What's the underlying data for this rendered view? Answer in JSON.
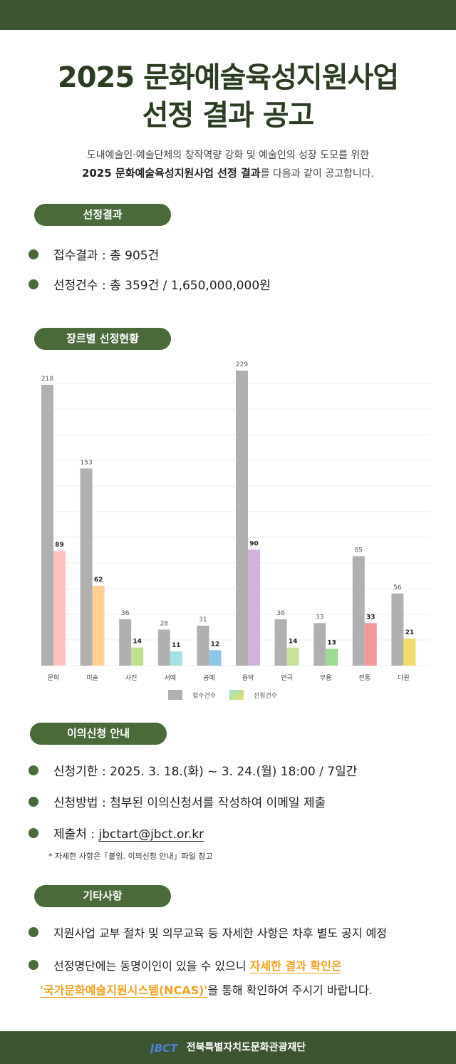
{
  "title": {
    "line1": "2025 문화예술육성지원사업",
    "line2": "선정 결과 공고"
  },
  "intro": {
    "line1": "도내예술인·예술단체의 창작역량 강화 및 예술인의 성장 도모를 위한",
    "line2_bold": "2025 문화예술육성지원사업 선정 결과",
    "line2_rest": "를 다음과 같이 공고합니다."
  },
  "sections": {
    "result": {
      "header": "선정결과",
      "items": [
        "접수결과 : 총 905건",
        "선정건수 : 총 359건 / 1,650,000,000원"
      ]
    },
    "genre": {
      "header": "장르별 선정현황"
    },
    "appeal": {
      "header": "이의신청 안내",
      "items": [
        "신청기한 : 2025. 3. 18.(화) ~ 3. 24.(월) 18:00 / 7일간",
        "신청방법 : 첨부된 이의신청서를 작성하여 이메일 제출"
      ],
      "email_label": "제출처 : ",
      "email": "jbctart@jbct.or.kr",
      "note": "* 자세한 사항은「붙임. 이의신청 안내」파일 참고"
    },
    "etc": {
      "header": "기타사항",
      "items": [
        "지원사업  교부 절차 및 의무교육 등 자세한 사항은 차후 별도 공지 예정"
      ],
      "item2_part1": "선정명단에는 동명이인이 있을 수 있으니 ",
      "item2_highlight1": "자세한 결과 확인은",
      "item2_highlight2": "'국가문화예술지원시스템(NCAS)'",
      "item2_part2": "을 통해 확인하여 주시기 바랍니다."
    }
  },
  "footer": {
    "org": "전북특별자치도문화관광재단",
    "logo_text": "JBCT"
  },
  "colors": {
    "brand": "#3c5530",
    "pill": "#4a6a3a",
    "accent": "#f4a11d",
    "received_bar": "#b0b0b0",
    "selected_bars": [
      "#ffc2c2",
      "#ffcf94",
      "#bde08f",
      "#a3e0e3",
      "#8ec6e6",
      "#d0b2da",
      "#c8e29a",
      "#9edb91",
      "#f29a9a",
      "#f2dc6e"
    ]
  },
  "chart_data": {
    "type": "bar",
    "categories": [
      "문학",
      "미술",
      "사진",
      "서예",
      "공예",
      "음악",
      "연극",
      "무용",
      "전통",
      "다원"
    ],
    "series": [
      {
        "name": "접수건수",
        "values": [
          218,
          153,
          36,
          28,
          31,
          229,
          36,
          33,
          85,
          56
        ]
      },
      {
        "name": "선정건수",
        "values": [
          89,
          62,
          14,
          11,
          12,
          90,
          14,
          13,
          33,
          21
        ]
      }
    ],
    "ylim": [
      0,
      229
    ],
    "grid": true,
    "legend": "bottom-center",
    "value_labels": true
  }
}
